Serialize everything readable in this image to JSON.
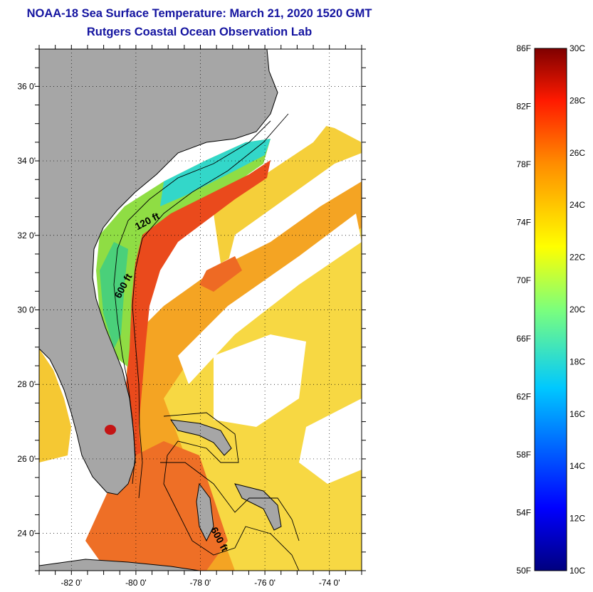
{
  "header": {
    "title": "NOAA-18 Sea Surface Temperature:  March 21, 2020 1520 GMT",
    "subtitle": "Rutgers Coastal Ocean Observation Lab"
  },
  "map": {
    "lon_range": [
      -83,
      -73
    ],
    "lat_range": [
      23,
      37
    ],
    "lon_ticks": [
      {
        "value": -82,
        "label": "-82 0'"
      },
      {
        "value": -80,
        "label": "-80 0'"
      },
      {
        "value": -78,
        "label": "-78 0'"
      },
      {
        "value": -76,
        "label": "-76 0'"
      },
      {
        "value": -74,
        "label": "-74 0'"
      }
    ],
    "lat_ticks": [
      {
        "value": 24,
        "label": "24 0'"
      },
      {
        "value": 26,
        "label": "26 0'"
      },
      {
        "value": 28,
        "label": "28 0'"
      },
      {
        "value": 30,
        "label": "30 0'"
      },
      {
        "value": 32,
        "label": "32 0'"
      },
      {
        "value": 34,
        "label": "34 0'"
      },
      {
        "value": 36,
        "label": "36 0'"
      }
    ],
    "contours": [
      {
        "label": "120 ft",
        "lon": -79.6,
        "lat": 32.3,
        "rotate": -28
      },
      {
        "label": "600 ft",
        "lon": -80.3,
        "lat": 30.6,
        "rotate": -62
      },
      {
        "label": "600 ft",
        "lon": -77.5,
        "lat": 23.8,
        "rotate": 62
      }
    ],
    "colors": {
      "land": "#a6a6a6",
      "cloud": "#ffffff",
      "gulf_stream": "#e8481a",
      "warm": "#f39a1e",
      "mild": "#f6d63a",
      "cool": "#8ede3c",
      "cold": "#2fd7c8"
    }
  },
  "colorbar": {
    "f_labels": [
      "86F",
      "82F",
      "78F",
      "74F",
      "70F",
      "66F",
      "62F",
      "58F",
      "54F",
      "50F"
    ],
    "c_labels": [
      "30C",
      "28C",
      "26C",
      "24C",
      "22C",
      "20C",
      "18C",
      "16C",
      "14C",
      "12C",
      "10C"
    ],
    "celsius_range": [
      10,
      30
    ]
  }
}
